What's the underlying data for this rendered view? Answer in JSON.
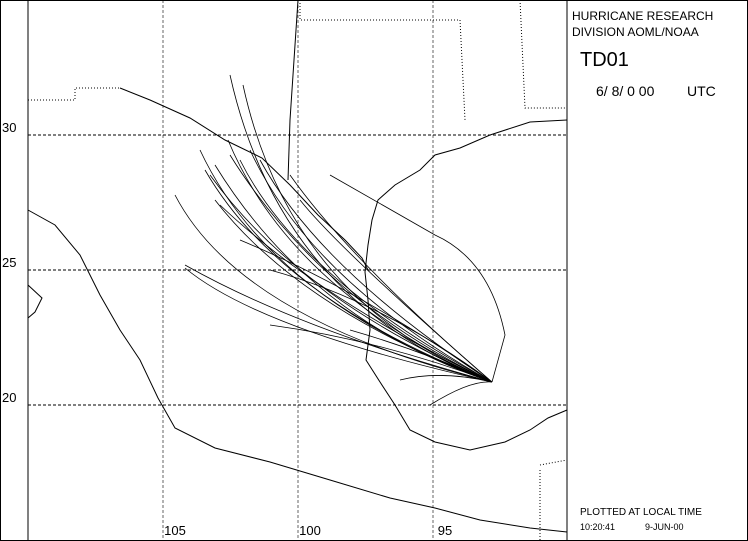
{
  "header": {
    "line1": "HURRICANE RESEARCH",
    "line2": "DIVISION AOML/NOAA",
    "storm": "TD01",
    "date": "6/ 8/ 0 00",
    "zone": "UTC"
  },
  "map": {
    "latitude_labels": [
      30,
      25,
      20
    ],
    "longitude_labels": [
      105,
      100,
      95
    ]
  },
  "footer": {
    "note": "PLOTTED AT LOCAL TIME",
    "time": "10:20:41",
    "date": "9-JUN-00"
  }
}
